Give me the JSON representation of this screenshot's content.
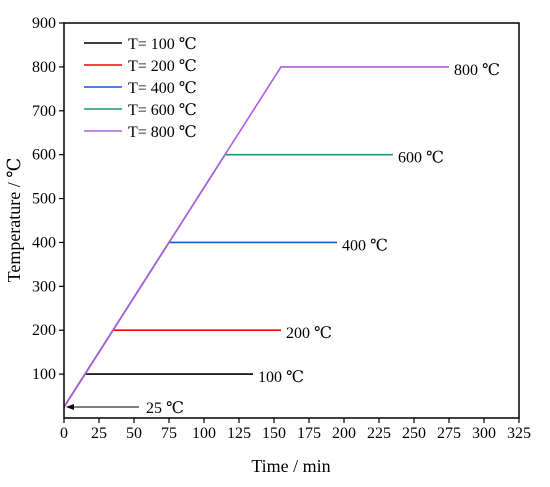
{
  "chart_data": {
    "type": "line",
    "title": "",
    "xlabel": "Time / min",
    "ylabel": "Temperature / ℃",
    "xlim": [
      0,
      325
    ],
    "ylim": [
      0,
      900
    ],
    "x_ticks": [
      "0",
      "25",
      "50",
      "75",
      "100",
      "125",
      "150",
      "175",
      "200",
      "225",
      "250",
      "275",
      "300",
      "325"
    ],
    "y_ticks": [
      "100",
      "200",
      "300",
      "400",
      "500",
      "600",
      "700",
      "800",
      "900"
    ],
    "legend_position": "top-left",
    "grid": false,
    "series": [
      {
        "name": "T= 100 ℃",
        "color": "#000000",
        "points": [
          [
            0,
            25
          ],
          [
            15,
            100
          ],
          [
            135,
            100
          ]
        ],
        "end_label": "100 ℃"
      },
      {
        "name": "T= 200 ℃",
        "color": "#ff0000",
        "points": [
          [
            0,
            25
          ],
          [
            35,
            200
          ],
          [
            155,
            200
          ]
        ],
        "end_label": "200 ℃"
      },
      {
        "name": "T= 400 ℃",
        "color": "#0a5fd8",
        "points": [
          [
            0,
            25
          ],
          [
            75,
            400
          ],
          [
            195,
            400
          ]
        ],
        "end_label": "400 ℃"
      },
      {
        "name": "T= 600 ℃",
        "color": "#1a9b6c",
        "points": [
          [
            0,
            25
          ],
          [
            115,
            600
          ],
          [
            235,
            600
          ]
        ],
        "end_label": "600 ℃"
      },
      {
        "name": "T= 800 ℃",
        "color": "#b65be0",
        "points": [
          [
            0,
            25
          ],
          [
            155,
            800
          ],
          [
            275,
            800
          ]
        ],
        "end_label": "800 ℃"
      }
    ],
    "annotations": [
      {
        "text": "25 ℃",
        "x": 0,
        "y": 25
      }
    ]
  }
}
